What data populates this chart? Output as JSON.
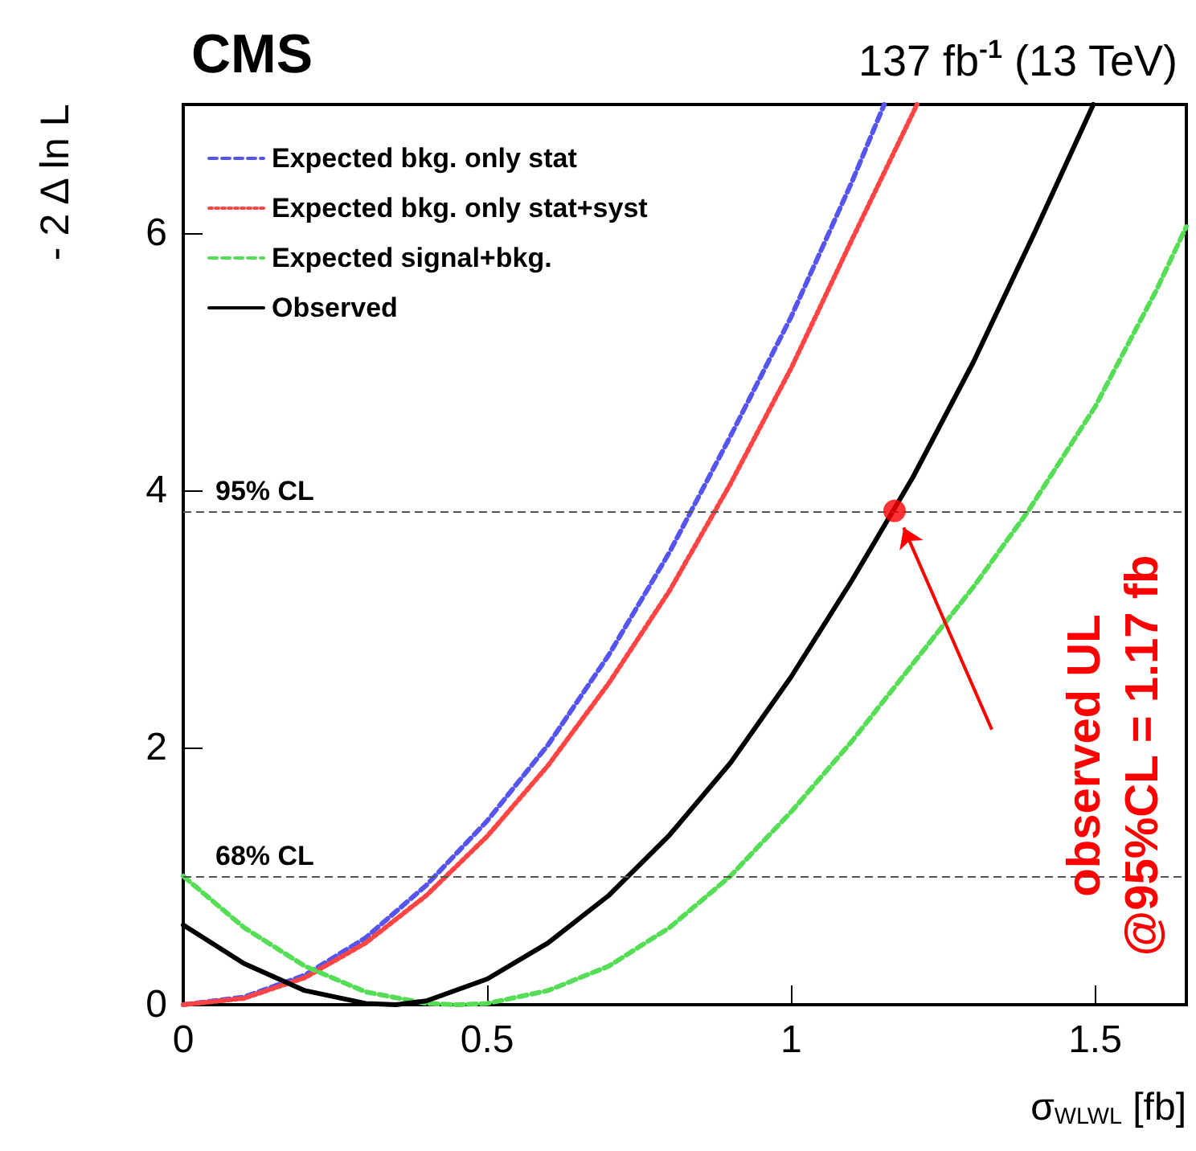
{
  "chart_data": {
    "type": "line",
    "title": "CMS",
    "subtitle": "137 fb$^{-1}$ (13 TeV)",
    "xlabel": "σ$_{WLWL}$ [fb]",
    "ylabel": "- 2 Δ ln L",
    "xlim": [
      0,
      1.65
    ],
    "ylim": [
      0,
      7
    ],
    "xticks": [
      0,
      0.5,
      1,
      1.5
    ],
    "yticks": [
      0,
      2,
      4,
      6
    ],
    "grid": false,
    "legend": "top left",
    "marker": "none",
    "series": [
      {
        "name": "Expected bkg. only stat",
        "color": "#5555ee",
        "line_style": "dashed",
        "x": [
          0,
          0.1,
          0.2,
          0.3,
          0.4,
          0.5,
          0.6,
          0.7,
          0.8,
          0.9,
          1.0,
          1.1,
          1.153
        ],
        "values": [
          0,
          0.06,
          0.23,
          0.52,
          0.93,
          1.43,
          2.02,
          2.72,
          3.52,
          4.42,
          5.35,
          6.4,
          7
        ]
      },
      {
        "name": "Expected bkg. only stat+syst",
        "color": "#ff4444",
        "line_style": "dotted",
        "x": [
          0,
          0.1,
          0.2,
          0.3,
          0.4,
          0.5,
          0.6,
          0.7,
          0.8,
          0.9,
          1.0,
          1.1,
          1.207
        ],
        "values": [
          0,
          0.05,
          0.21,
          0.48,
          0.85,
          1.31,
          1.86,
          2.5,
          3.22,
          4.05,
          4.95,
          5.95,
          7
        ]
      },
      {
        "name": "Expected signal+bkg.",
        "color": "#55dd55",
        "line_style": "dashed",
        "x": [
          0,
          0.1,
          0.2,
          0.3,
          0.4,
          0.45,
          0.5,
          0.6,
          0.7,
          0.8,
          0.9,
          1.0,
          1.1,
          1.2,
          1.3,
          1.39,
          1.5,
          1.6,
          1.65
        ],
        "values": [
          1,
          0.6,
          0.3,
          0.1,
          0.01,
          0,
          0.01,
          0.11,
          0.3,
          0.6,
          1.0,
          1.5,
          2.05,
          2.65,
          3.25,
          3.84,
          4.65,
          5.55,
          6.05
        ]
      },
      {
        "name": "Observed",
        "color": "#000000",
        "line_style": "solid",
        "x": [
          0,
          0.1,
          0.2,
          0.3,
          0.35,
          0.4,
          0.5,
          0.6,
          0.7,
          0.8,
          0.9,
          1.0,
          1.1,
          1.2,
          1.3,
          1.4,
          1.497
        ],
        "values": [
          0.62,
          0.32,
          0.11,
          0.01,
          0,
          0.03,
          0.2,
          0.48,
          0.85,
          1.32,
          1.88,
          2.55,
          3.3,
          4.1,
          5.0,
          6.0,
          7
        ]
      },
      {
        "type": "scatter",
        "marker": "circle",
        "color": "#ff0000",
        "x": [
          1.17
        ],
        "values": [
          3.84
        ]
      }
    ],
    "ref_lines": [
      {
        "axis": "y",
        "value": 3.84,
        "label": "95% CL",
        "color": "#555555",
        "line_style": "dashed"
      },
      {
        "axis": "y",
        "value": 1,
        "label": "68% CL",
        "color": "#555555",
        "line_style": "dashed"
      }
    ],
    "annotations": [
      "observed UL\n@95%CL = 1.17 fb"
    ]
  }
}
